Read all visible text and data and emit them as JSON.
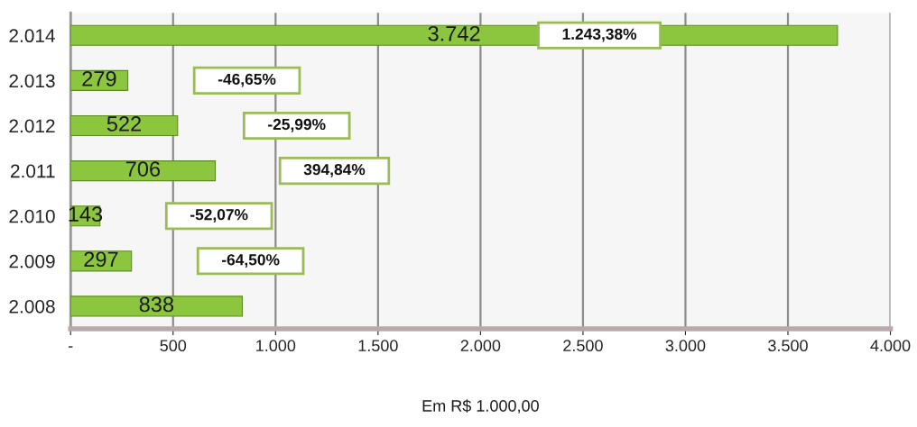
{
  "chart_data": {
    "type": "bar",
    "orientation": "horizontal",
    "categories": [
      "2.014",
      "2.013",
      "2.012",
      "2.011",
      "2.010",
      "2.009",
      "2.008"
    ],
    "values": [
      3742,
      279,
      522,
      706,
      143,
      297,
      838
    ],
    "value_labels": [
      "3.742",
      "279",
      "522",
      "706",
      "143",
      "297",
      "838"
    ],
    "color": "#8cc63f",
    "xlabel": "Em R$ 1.000,00",
    "xlim": [
      0,
      4000
    ],
    "xticks": [
      {
        "value": 0,
        "label": "-"
      },
      {
        "value": 500,
        "label": "500"
      },
      {
        "value": 1000,
        "label": "1.000"
      },
      {
        "value": 1500,
        "label": "1.500"
      },
      {
        "value": 2000,
        "label": "2.000"
      },
      {
        "value": 2500,
        "label": "2.500"
      },
      {
        "value": 3000,
        "label": "3.000"
      },
      {
        "value": 3500,
        "label": "3.500"
      },
      {
        "value": 4000,
        "label": "4.000"
      }
    ],
    "grid": "x",
    "annotations": [
      "1.243,38%",
      "-46,65%",
      "-25,99%",
      "394,84%",
      "-52,07%",
      "-64,50%"
    ]
  }
}
